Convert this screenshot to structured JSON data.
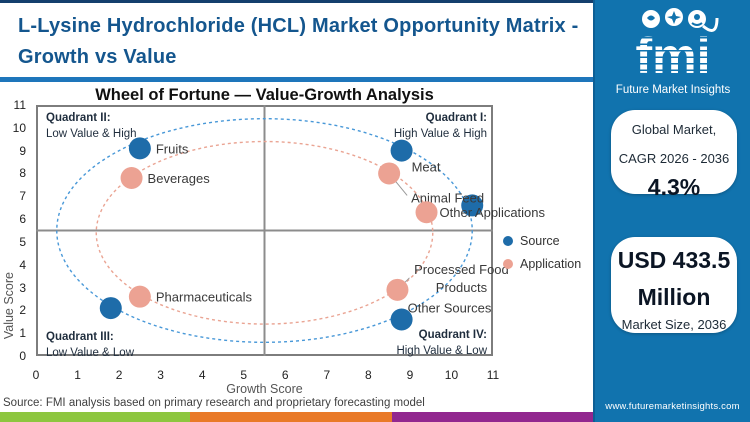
{
  "header": {
    "title": "L-Lysine Hydrochloride (HCL) Market Opportunity Matrix - Growth vs Value"
  },
  "chart_data": {
    "type": "scatter",
    "title": "Wheel of Fortune — Value-Growth Analysis",
    "xlabel": "Growth Score",
    "ylabel": "Value Score",
    "xlim": [
      0,
      11
    ],
    "ylim": [
      0,
      11
    ],
    "x_ticks": [
      0,
      1,
      2,
      3,
      4,
      5,
      6,
      7,
      8,
      9,
      10,
      11
    ],
    "y_ticks": [
      0,
      1,
      2,
      3,
      4,
      5,
      6,
      7,
      8,
      9,
      10,
      11
    ],
    "grid": false,
    "quadrant_midlines": {
      "x": 5.5,
      "y": 5.5
    },
    "quadrants": [
      {
        "name": "Quadrant I:",
        "desc": "High Value & High",
        "corner": "top-right"
      },
      {
        "name": "Quadrant II:",
        "desc": "Low Value & High",
        "corner": "top-left"
      },
      {
        "name": "Quadrant III:",
        "desc": "Low Value & Low",
        "corner": "bottom-left"
      },
      {
        "name": "Quadrant IV:",
        "desc": "High Value & Low",
        "corner": "bottom-right"
      }
    ],
    "series": [
      {
        "name": "Source",
        "color": "#1e6ca9",
        "points": [
          {
            "label": "Fruits",
            "x": 2.5,
            "y": 9.1,
            "dx": 16,
            "dy": 5,
            "anchor": "start"
          },
          {
            "label": "Meat",
            "x": 8.8,
            "y": 9.0,
            "dx": 10,
            "dy": 21,
            "anchor": "start"
          },
          {
            "label": "",
            "x": 10.5,
            "y": 6.6
          },
          {
            "label": "Other Sources",
            "x": 8.8,
            "y": 1.6,
            "dx": 6,
            "dy": -7,
            "anchor": "start"
          },
          {
            "label": "",
            "x": 1.8,
            "y": 2.1
          }
        ]
      },
      {
        "name": "Application",
        "color": "#eca293",
        "points": [
          {
            "label": "Beverages",
            "x": 2.3,
            "y": 7.8,
            "dx": 16,
            "dy": 5,
            "anchor": "start"
          },
          {
            "label": "Animal Feed",
            "x": 8.5,
            "y": 8.0,
            "dx": 22,
            "dy": 29,
            "anchor": "start",
            "leader": [
              18,
              22
            ]
          },
          {
            "label": "Other Applications",
            "x": 9.4,
            "y": 6.3,
            "dx": 13,
            "dy": 5,
            "anchor": "start"
          },
          {
            "label": "Processed Food\nProducts",
            "x": 8.7,
            "y": 2.9,
            "dx": 64,
            "dy": -16,
            "anchor": "middle",
            "leader": [
              12,
              -12
            ]
          },
          {
            "label": "Pharmaceuticals",
            "x": 2.5,
            "y": 2.6,
            "dx": 16,
            "dy": 5,
            "anchor": "start"
          }
        ]
      }
    ],
    "ellipses": [
      {
        "series": "Source",
        "cx": 5.5,
        "cy": 5.5,
        "rx": 5.0,
        "ry": 4.9,
        "color": "#4898d8"
      },
      {
        "series": "Application",
        "cx": 5.5,
        "cy": 5.4,
        "rx": 4.05,
        "ry": 4.0,
        "color": "#eaa493"
      }
    ],
    "legend_position": "right"
  },
  "legend": {
    "items": [
      {
        "label": "Source",
        "color": "#1e6ca9"
      },
      {
        "label": "Application",
        "color": "#eca293"
      }
    ]
  },
  "sidebar": {
    "logo_text": "fmi",
    "logo_subtext": "Future Market Insights",
    "cagr_card": {
      "line1": "Global Market,",
      "line2": "CAGR 2026 - 2036",
      "value": "4.3%"
    },
    "size_card": {
      "value_line1": "USD 433.5",
      "value_line2": "Million",
      "caption": "Market Size, 2036"
    },
    "url": "www.futuremarketinsights.com",
    "panel_color": "#1173ae"
  },
  "footer": {
    "source_note": "Source: FMI analysis based on primary research and proprietary forecasting model",
    "bar_colors": [
      "#8dc63f",
      "#e97a28",
      "#92278f"
    ]
  }
}
